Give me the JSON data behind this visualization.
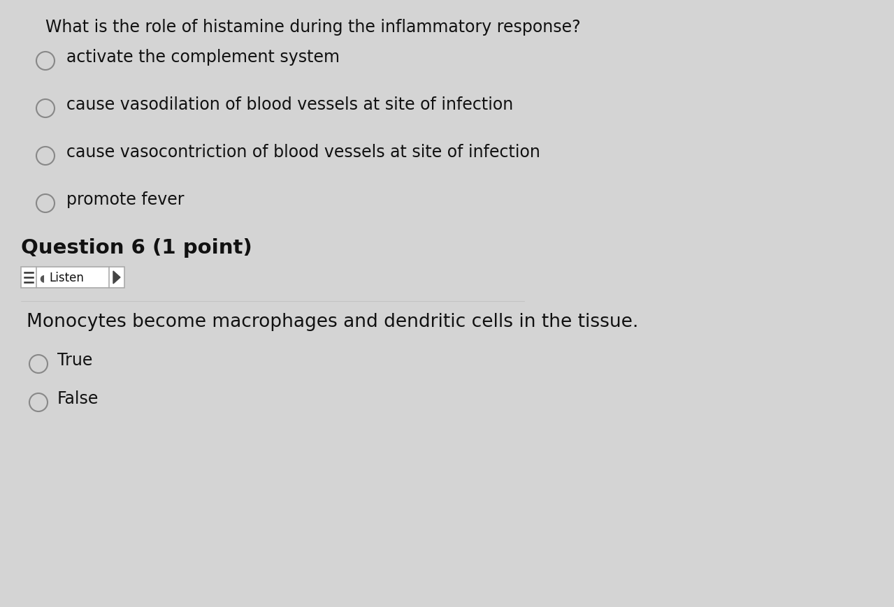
{
  "background_color": "#d4d4d4",
  "title_q5": "What is the role of histamine during the inflammatory response?",
  "options_q5": [
    "activate the complement system",
    "cause vasodilation of blood vessels at site of infection",
    "cause vasocontriction of blood vessels at site of infection",
    "promote fever"
  ],
  "question6_label": "Question 6 (1 point)",
  "listen_label": "Listen",
  "q6_text": "Monocytes become macrophages and dendritic cells in the tissue.",
  "options_q6": [
    "True",
    "False"
  ],
  "title_fontsize": 17,
  "option_fontsize": 17,
  "q6_label_fontsize": 21,
  "q6_text_fontsize": 19,
  "q6_option_fontsize": 17,
  "text_color": "#111111",
  "circle_edge_color": "#888888",
  "circle_face_color": "#d4d4d4",
  "listen_box_color": "#ffffff",
  "listen_box_border": "#aaaaaa"
}
